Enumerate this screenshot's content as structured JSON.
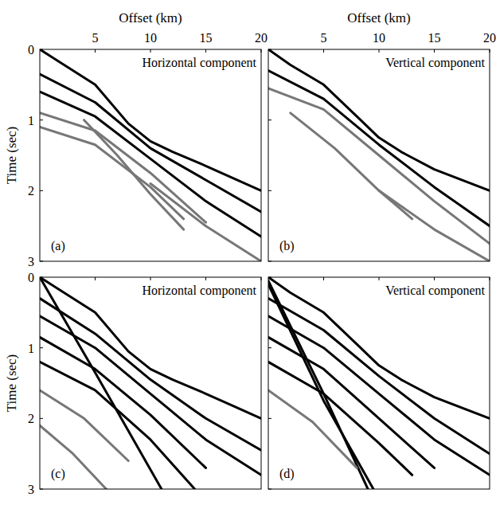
{
  "chart_data": [
    {
      "type": "line",
      "title": "Horizontal component",
      "xlabel": "Offset (km)",
      "ylabel": "Time (sec)",
      "panel_label": "(a)",
      "xlim": [
        0,
        20
      ],
      "ylim": [
        0,
        3
      ],
      "xticks": [
        5,
        10,
        15,
        20
      ],
      "yticks": [
        0,
        1,
        2,
        3
      ],
      "tick_labels": true,
      "series": [
        {
          "color": "#000000",
          "x": [
            0,
            2,
            5,
            8,
            10,
            12,
            15,
            20
          ],
          "values": [
            0,
            0.2,
            0.5,
            1.05,
            1.3,
            1.45,
            1.65,
            2.0
          ]
        },
        {
          "color": "#000000",
          "x": [
            0,
            5,
            10,
            15,
            20
          ],
          "values": [
            0.35,
            0.75,
            1.4,
            1.85,
            2.3
          ]
        },
        {
          "color": "#000000",
          "x": [
            0,
            5,
            10,
            15,
            20
          ],
          "values": [
            0.6,
            0.95,
            1.55,
            2.15,
            2.65
          ]
        },
        {
          "color": "#777777",
          "x": [
            0,
            5,
            10,
            15
          ],
          "values": [
            0.9,
            1.15,
            1.75,
            2.45
          ]
        },
        {
          "color": "#777777",
          "x": [
            0,
            5,
            10,
            13
          ],
          "values": [
            1.1,
            1.35,
            1.95,
            2.4
          ]
        },
        {
          "color": "#777777",
          "x": [
            4,
            7,
            10,
            13
          ],
          "values": [
            1.0,
            1.5,
            2.05,
            2.55
          ]
        },
        {
          "color": "#777777",
          "x": [
            10,
            15,
            20
          ],
          "values": [
            1.9,
            2.5,
            3.0
          ]
        }
      ]
    },
    {
      "type": "line",
      "title": "Vertical component",
      "xlabel": "Offset (km)",
      "panel_label": "(b)",
      "xlim": [
        0,
        20
      ],
      "ylim": [
        0,
        3
      ],
      "xticks": [
        5,
        10,
        15,
        20
      ],
      "yticks": [
        0,
        1,
        2,
        3
      ],
      "tick_labels": "x",
      "series": [
        {
          "color": "#000000",
          "x": [
            0,
            2,
            5,
            8,
            10,
            12,
            15,
            20
          ],
          "values": [
            0,
            0.22,
            0.5,
            0.95,
            1.25,
            1.45,
            1.7,
            2.0
          ]
        },
        {
          "color": "#000000",
          "x": [
            0,
            5,
            10,
            15,
            20
          ],
          "values": [
            0.3,
            0.7,
            1.35,
            1.95,
            2.5
          ]
        },
        {
          "color": "#777777",
          "x": [
            0,
            5,
            10,
            15,
            20
          ],
          "values": [
            0.55,
            0.85,
            1.5,
            2.15,
            2.75
          ]
        },
        {
          "color": "#777777",
          "x": [
            2,
            6,
            10,
            13
          ],
          "values": [
            0.9,
            1.4,
            2.0,
            2.4
          ]
        },
        {
          "color": "#777777",
          "x": [
            10,
            15,
            20
          ],
          "values": [
            2.0,
            2.55,
            3.0
          ]
        }
      ]
    },
    {
      "type": "line",
      "title": "Horizontal component",
      "ylabel": "Time (sec)",
      "panel_label": "(c)",
      "xlim": [
        0,
        20
      ],
      "ylim": [
        0,
        3
      ],
      "xticks": [
        5,
        10,
        15,
        20
      ],
      "yticks": [
        0,
        1,
        2,
        3
      ],
      "tick_labels": "y",
      "series": [
        {
          "color": "#000000",
          "x": [
            0,
            2,
            5,
            8,
            10,
            12,
            15,
            20
          ],
          "values": [
            0,
            0.2,
            0.5,
            1.05,
            1.3,
            1.45,
            1.65,
            2.0
          ]
        },
        {
          "color": "#000000",
          "x": [
            0,
            5,
            11
          ],
          "values": [
            0,
            1.35,
            3.0
          ]
        },
        {
          "color": "#000000",
          "x": [
            0,
            5,
            10,
            15,
            20
          ],
          "values": [
            0.3,
            0.8,
            1.45,
            2.0,
            2.45
          ]
        },
        {
          "color": "#000000",
          "x": [
            0,
            5,
            10,
            15,
            20
          ],
          "values": [
            0.55,
            1.0,
            1.65,
            2.3,
            2.8
          ]
        },
        {
          "color": "#000000",
          "x": [
            0,
            5,
            10,
            15
          ],
          "values": [
            0.85,
            1.3,
            1.95,
            2.7
          ]
        },
        {
          "color": "#000000",
          "x": [
            0,
            5,
            10,
            14
          ],
          "values": [
            1.2,
            1.6,
            2.3,
            3.0
          ]
        },
        {
          "color": "#777777",
          "x": [
            0,
            4,
            8
          ],
          "values": [
            1.6,
            2.0,
            2.6
          ]
        },
        {
          "color": "#777777",
          "x": [
            0,
            3,
            6
          ],
          "values": [
            2.1,
            2.5,
            3.0
          ]
        }
      ]
    },
    {
      "type": "line",
      "title": "Vertical component",
      "panel_label": "(d)",
      "xlim": [
        0,
        20
      ],
      "ylim": [
        0,
        3
      ],
      "xticks": [
        5,
        10,
        15,
        20
      ],
      "yticks": [
        0,
        1,
        2,
        3
      ],
      "tick_labels": false,
      "series": [
        {
          "color": "#000000",
          "x": [
            0,
            2,
            5,
            8,
            10,
            12,
            15,
            20
          ],
          "values": [
            0,
            0.22,
            0.5,
            0.95,
            1.25,
            1.45,
            1.7,
            2.0
          ]
        },
        {
          "color": "#000000",
          "x": [
            0,
            5,
            9
          ],
          "values": [
            0.05,
            1.65,
            3.0
          ]
        },
        {
          "color": "#000000",
          "x": [
            0,
            5,
            9.5
          ],
          "values": [
            0.1,
            1.75,
            3.0
          ]
        },
        {
          "color": "#000000",
          "x": [
            0,
            5,
            10,
            15,
            20
          ],
          "values": [
            0.3,
            0.75,
            1.4,
            2.0,
            2.5
          ]
        },
        {
          "color": "#000000",
          "x": [
            0,
            5,
            10,
            15,
            20
          ],
          "values": [
            0.55,
            1.0,
            1.65,
            2.3,
            2.8
          ]
        },
        {
          "color": "#000000",
          "x": [
            0,
            5,
            10,
            15
          ],
          "values": [
            0.85,
            1.3,
            2.0,
            2.7
          ]
        },
        {
          "color": "#000000",
          "x": [
            0,
            5,
            10,
            13
          ],
          "values": [
            1.2,
            1.65,
            2.35,
            2.8
          ]
        },
        {
          "color": "#777777",
          "x": [
            0,
            4,
            8
          ],
          "values": [
            1.6,
            2.05,
            2.7
          ]
        }
      ]
    }
  ]
}
